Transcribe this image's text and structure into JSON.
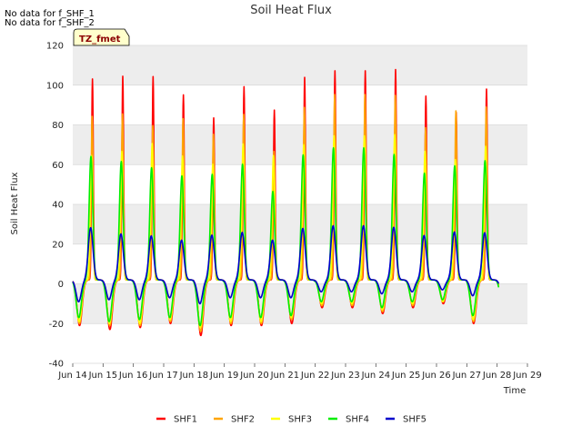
{
  "chart_data": {
    "type": "line",
    "title": "Soil Heat Flux",
    "xlabel": "Time",
    "ylabel": "Soil Heat Flux",
    "xlim": [
      14,
      29
    ],
    "ylim": [
      -40,
      120
    ],
    "yticks": [
      -40,
      -20,
      0,
      20,
      40,
      60,
      80,
      100,
      120
    ],
    "xticks": [
      14,
      15,
      16,
      17,
      18,
      19,
      20,
      21,
      22,
      23,
      24,
      25,
      26,
      27,
      28,
      29
    ],
    "xtick_labels": [
      "Jun 14",
      "Jun 15",
      "Jun 16",
      "Jun 17",
      "Jun 18",
      "Jun 19",
      "Jun 20",
      "Jun 21",
      "Jun 22",
      "Jun 23",
      "Jun 24",
      "Jun 25",
      "Jun 26",
      "Jun 27",
      "Jun 28",
      "Jun 29"
    ],
    "grid": true,
    "legend_position": "bottom-center",
    "annotations": [
      "No data for f_SHF_1",
      "No data for f_SHF_2"
    ],
    "tz_label": "TZ_fmet",
    "days": [
      14.0,
      15.0,
      16.0,
      17.0,
      18.0,
      19.0,
      20.0,
      21.0,
      22.0,
      23.0,
      24.0,
      25.0,
      26.0,
      27.0
    ],
    "x_range": [
      14.0,
      28.05
    ],
    "series": [
      {
        "name": "SHF1",
        "color": "#ff0000",
        "daily_peak": [
          99,
          100,
          100,
          91,
          78,
          95,
          83,
          100,
          105,
          105,
          105,
          92,
          84,
          94
        ],
        "daily_min": [
          -21,
          -23,
          -22,
          -20,
          -26,
          -21,
          -21,
          -20,
          -12,
          -12,
          -15,
          -12,
          -10,
          -20
        ]
      },
      {
        "name": "SHF2",
        "color": "#ffa500",
        "daily_peak": [
          80,
          81,
          75,
          79,
          70,
          81,
          62,
          85,
          93,
          93,
          92,
          76,
          85,
          85
        ],
        "daily_min": [
          -20,
          -21,
          -21,
          -19,
          -24,
          -20,
          -20,
          -18,
          -11,
          -11,
          -14,
          -11,
          -9,
          -19
        ]
      },
      {
        "name": "SHF3",
        "color": "#ffff00",
        "daily_peak": [
          60,
          62,
          66,
          60,
          55,
          66,
          60,
          66,
          72,
          72,
          72,
          64,
          60,
          65
        ],
        "daily_min": [
          -19,
          -20,
          -20,
          -18,
          -22,
          -19,
          -19,
          -17,
          -10,
          -10,
          -13,
          -10,
          -9,
          -18
        ]
      },
      {
        "name": "SHF4",
        "color": "#00ee00",
        "daily_peak": [
          60,
          57,
          54,
          50,
          50,
          56,
          42,
          61,
          66,
          66,
          62,
          53,
          57,
          58
        ],
        "daily_min": [
          -17,
          -19,
          -18,
          -17,
          -21,
          -17,
          -17,
          -16,
          -9,
          -9,
          -12,
          -9,
          -8,
          -16
        ]
      },
      {
        "name": "SHF5",
        "color": "#0000cc",
        "daily_peak": [
          25,
          22,
          21,
          19,
          21,
          23,
          19,
          25,
          27,
          27,
          26,
          22,
          24,
          23
        ],
        "daily_min": [
          -9,
          -8,
          -8,
          -7,
          -10,
          -7,
          -7,
          -7,
          -4,
          -4,
          -5,
          -4,
          -3,
          -6
        ]
      }
    ]
  }
}
